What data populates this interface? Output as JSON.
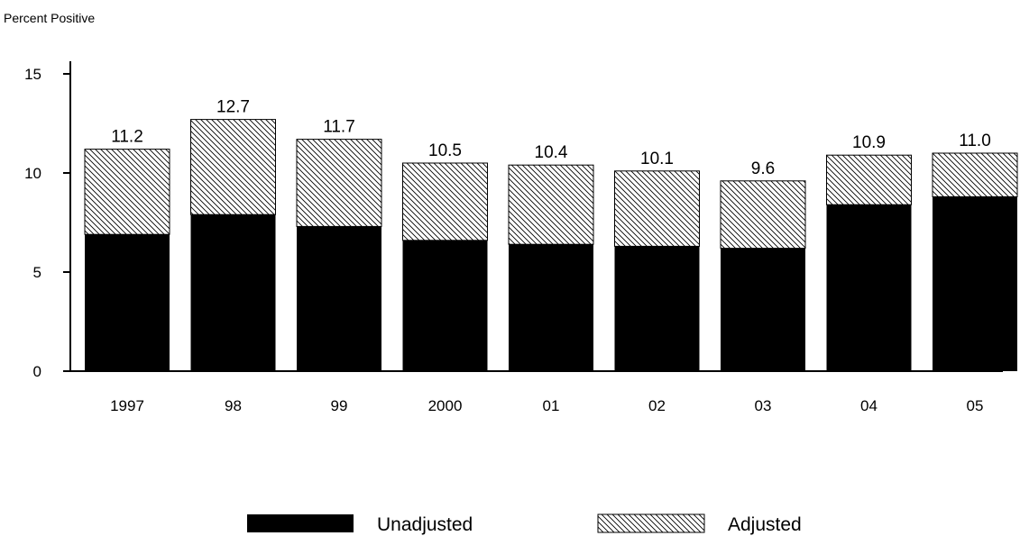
{
  "chart_data": {
    "type": "bar",
    "stacked": true,
    "title": "",
    "ylabel": "Percent Positive",
    "xlabel": "",
    "ylim": [
      0,
      15
    ],
    "yticks": [
      0,
      5,
      10,
      15
    ],
    "categories": [
      "1997",
      "98",
      "99",
      "2000",
      "01",
      "02",
      "03",
      "04",
      "05"
    ],
    "series": [
      {
        "name": "Unadjusted",
        "values": [
          6.9,
          7.9,
          7.3,
          6.6,
          6.4,
          6.3,
          6.2,
          8.4,
          8.8
        ],
        "color": "#000000",
        "pattern": "solid"
      },
      {
        "name": "Adjusted",
        "values": [
          4.3,
          4.8,
          4.4,
          3.9,
          4.0,
          3.8,
          3.4,
          2.5,
          2.2
        ],
        "color": "#000000",
        "pattern": "diagonal-hatch"
      }
    ],
    "totals": [
      11.2,
      12.7,
      11.7,
      10.5,
      10.4,
      10.1,
      9.6,
      10.9,
      11.0
    ],
    "data_labels": [
      "11.2",
      "12.7",
      "11.7",
      "10.5",
      "10.4",
      "10.1",
      "9.6",
      "10.9",
      "11.0"
    ],
    "legend": {
      "position": "bottom",
      "entries": [
        "Unadjusted",
        "Adjusted"
      ]
    },
    "grid": false
  }
}
